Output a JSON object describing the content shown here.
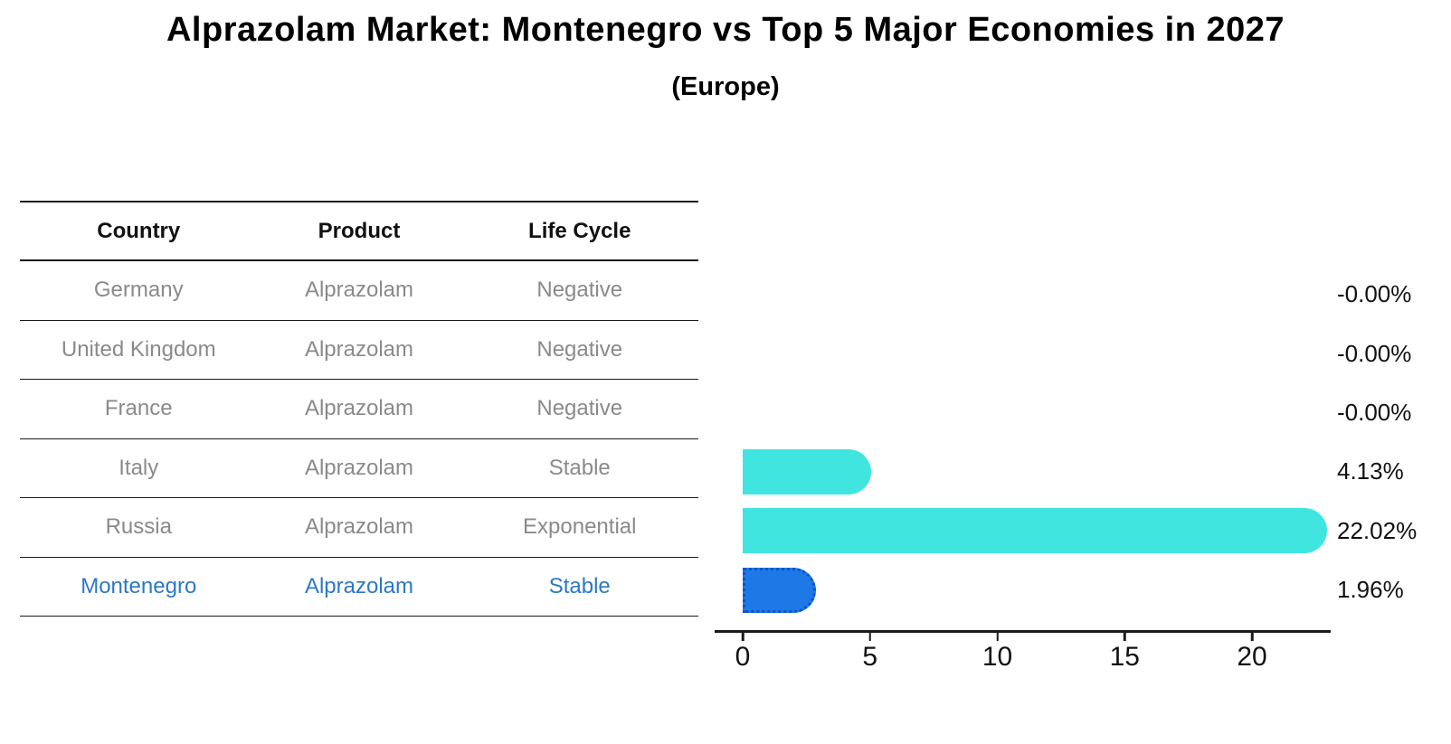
{
  "title": "Alprazolam Market: Montenegro vs Top 5 Major Economies in 2027",
  "subtitle": "(Europe)",
  "colors": {
    "bar_default": "#40e5e0",
    "bar_highlight": "#1e78e6",
    "bar_highlight_border": "#0d55c8",
    "row_text": "#8a8a8a",
    "highlight_text": "#2b78c8",
    "axis_color": "#1a1a1a"
  },
  "table": {
    "headers": [
      "Country",
      "Product",
      "Life Cycle"
    ],
    "rows": [
      {
        "country": "Germany",
        "product": "Alprazolam",
        "life_cycle": "Negative",
        "highlight": false
      },
      {
        "country": "United Kingdom",
        "product": "Alprazolam",
        "life_cycle": "Negative",
        "highlight": false
      },
      {
        "country": "France",
        "product": "Alprazolam",
        "life_cycle": "Negative",
        "highlight": false
      },
      {
        "country": "Italy",
        "product": "Alprazolam",
        "life_cycle": "Stable",
        "highlight": false
      },
      {
        "country": "Russia",
        "product": "Alprazolam",
        "life_cycle": "Exponential",
        "highlight": false
      },
      {
        "country": "Montenegro",
        "product": "Alprazolam",
        "life_cycle": "Stable",
        "highlight": true
      }
    ]
  },
  "chart_data": {
    "type": "bar",
    "orientation": "horizontal",
    "title": "Alprazolam Market: Montenegro vs Top 5 Major Economies in 2027 (Europe)",
    "categories": [
      "Germany",
      "United Kingdom",
      "France",
      "Italy",
      "Russia",
      "Montenegro"
    ],
    "values": [
      -0.0,
      -0.0,
      -0.0,
      4.13,
      22.02,
      1.96
    ],
    "value_labels": [
      "-0.00%",
      "-0.00%",
      "-0.00%",
      "4.13%",
      "22.02%",
      "1.96%"
    ],
    "highlight_index": 5,
    "x_ticks": [
      0,
      5,
      10,
      15,
      20
    ],
    "xlim": [
      0,
      23.1
    ],
    "grid": false,
    "legend": false
  }
}
